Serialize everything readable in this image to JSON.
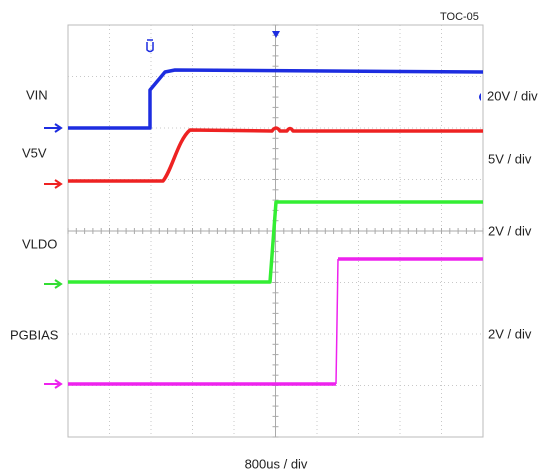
{
  "header": {
    "title": "TOC-05"
  },
  "channels": [
    {
      "label": "VIN",
      "scale": "20V / div"
    },
    {
      "label": "V5V",
      "scale": "5V / div"
    },
    {
      "label": "VLDO",
      "scale": "2V / div"
    },
    {
      "label": "PGBIAS",
      "scale": "2V / div"
    }
  ],
  "timebase": "800us / div"
}
